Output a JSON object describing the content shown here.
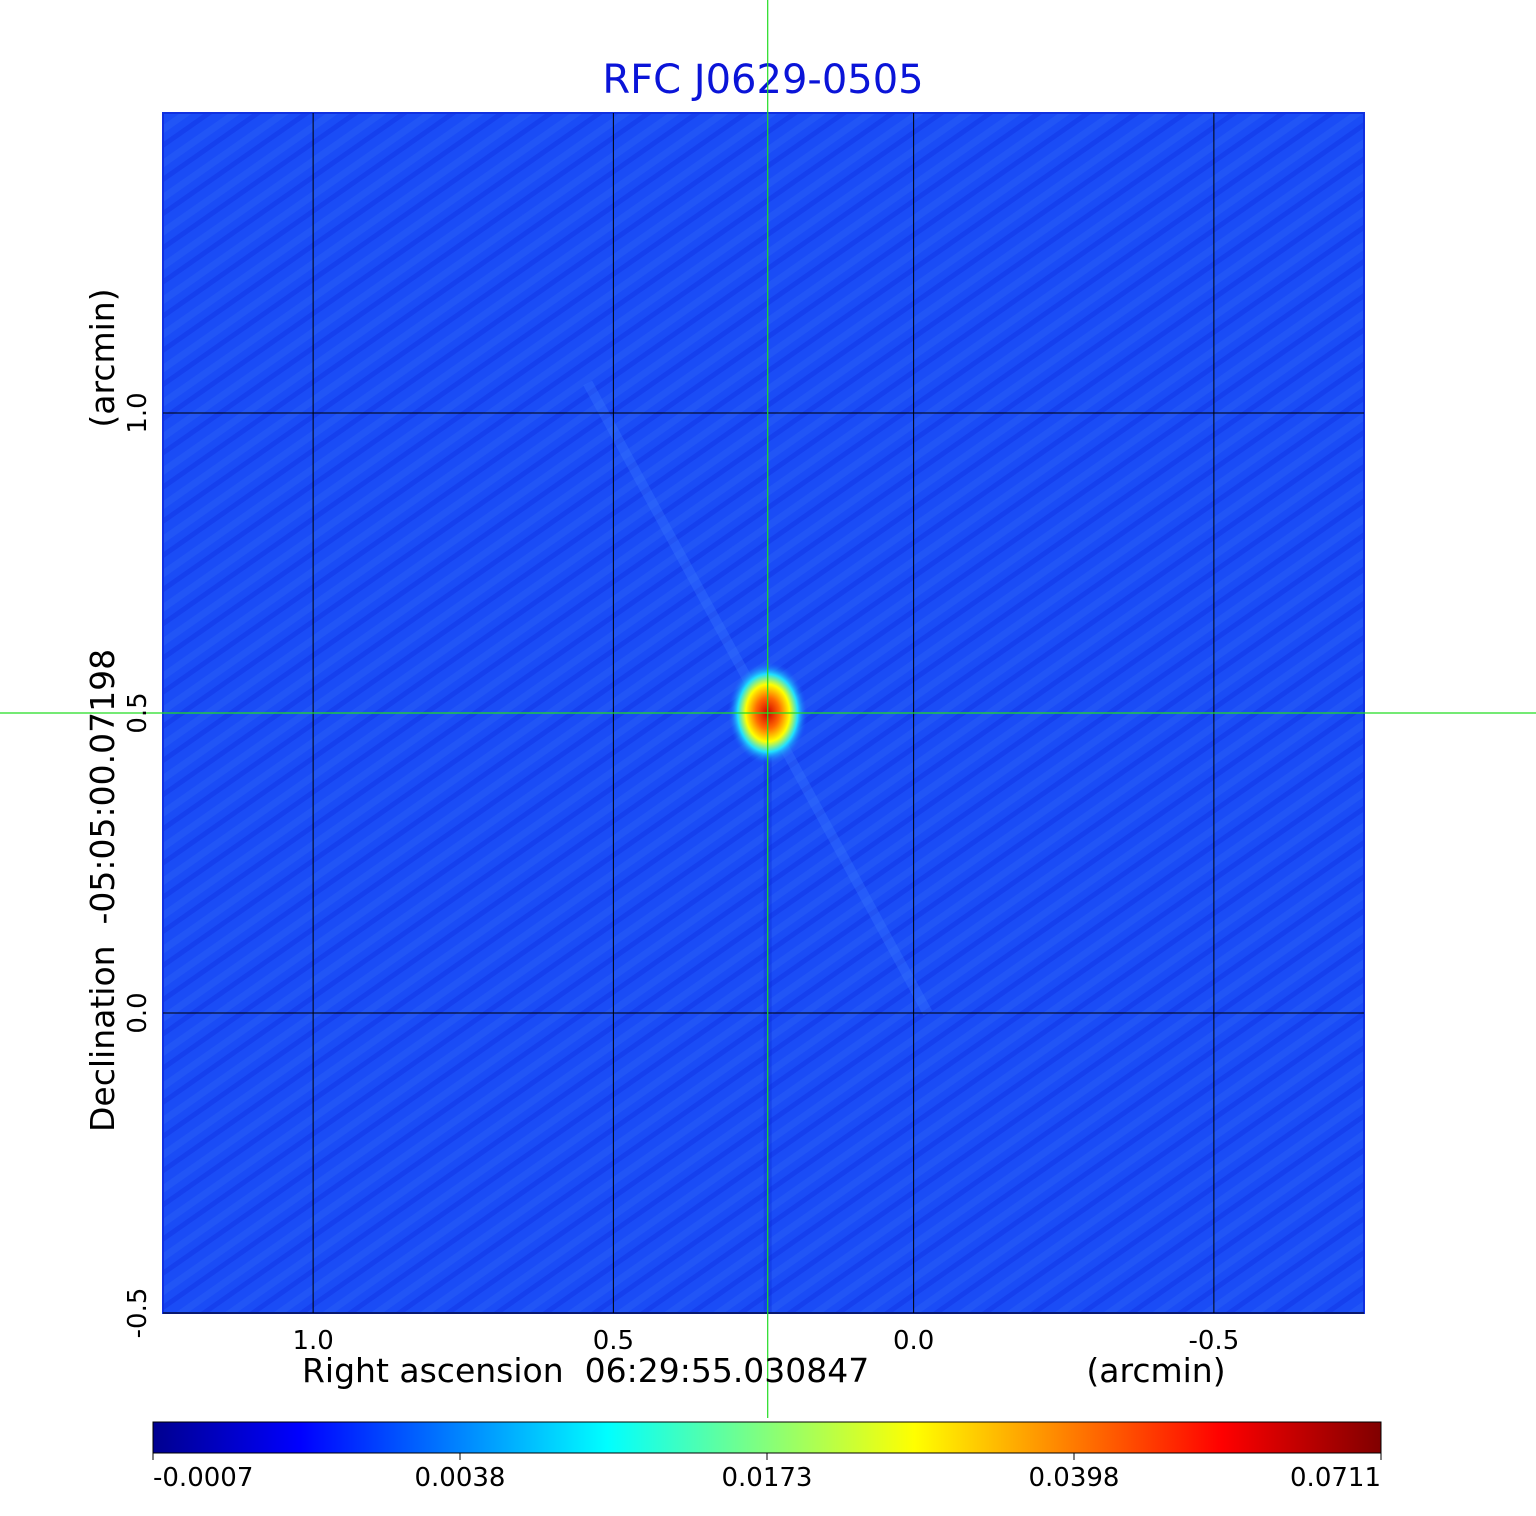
{
  "chart_data": {
    "type": "heatmap",
    "title": "RFC J0629-0505",
    "xlabel": "Right ascension  06:29:55.030847",
    "x_unit": "(arcmin)",
    "ylabel": "Declination  -05:05:00.07198",
    "y_unit": "(arcmin)",
    "xlim": [
      1.25,
      -0.75
    ],
    "ylim": [
      -0.5,
      1.5
    ],
    "x_ticks": [
      1.0,
      0.5,
      0.0,
      -0.5
    ],
    "x_tick_labels": [
      "1.0",
      "0.5",
      "0.0",
      "-0.5"
    ],
    "y_ticks": [
      -0.5,
      0.0,
      0.5,
      1.0
    ],
    "y_tick_labels": [
      "-0.5",
      "0.0",
      "0.5",
      "1.0"
    ],
    "grid": true,
    "crosshair": {
      "x": 0.243,
      "y": 0.5,
      "color": "#22dd22"
    },
    "source_peak": {
      "x": 0.243,
      "y": 0.5,
      "value": 0.0711
    },
    "colorbar": {
      "colormap": "jet",
      "tick_labels": [
        "-0.0007",
        "0.0038",
        "0.0173",
        "0.0398",
        "0.0711"
      ],
      "min": -0.0007,
      "max": 0.0711
    },
    "colors": {
      "title": "#0a14d8",
      "background_map": "#1846f5",
      "grid": "#000000"
    }
  }
}
